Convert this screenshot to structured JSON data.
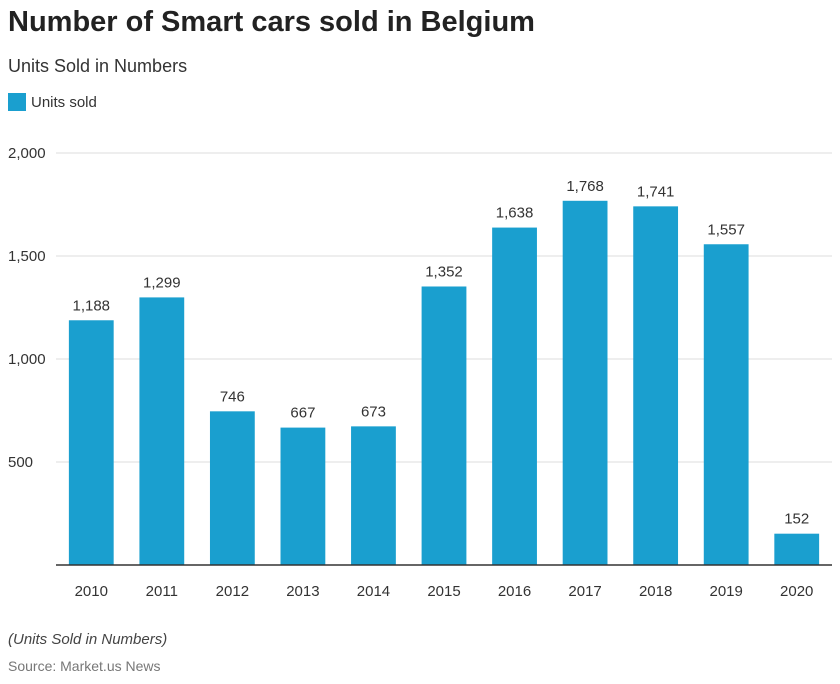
{
  "header": {
    "title": "Number of Smart cars sold in Belgium",
    "subtitle": "Units Sold in Numbers"
  },
  "legend": {
    "label": "Units sold",
    "color": "#1a9fcf"
  },
  "footer": {
    "note": "(Units Sold in Numbers)",
    "source": "Source: Market.us News"
  },
  "chart_data": {
    "type": "bar",
    "title": "Number of Smart cars sold in Belgium",
    "subtitle": "Units Sold in Numbers",
    "xlabel": "",
    "ylabel": "",
    "categories": [
      "2010",
      "2011",
      "2012",
      "2013",
      "2014",
      "2015",
      "2016",
      "2017",
      "2018",
      "2019",
      "2020"
    ],
    "series": [
      {
        "name": "Units sold",
        "values": [
          1188,
          1299,
          746,
          667,
          673,
          1352,
          1638,
          1768,
          1741,
          1557,
          152
        ]
      }
    ],
    "value_labels": [
      "1,188",
      "1,299",
      "746",
      "667",
      "673",
      "1,352",
      "1,638",
      "1,768",
      "1,741",
      "1,557",
      "152"
    ],
    "ylim": [
      0,
      2000
    ],
    "yticks": [
      500,
      1000,
      1500,
      2000
    ],
    "ytick_labels": [
      "500",
      "1,000",
      "1,500",
      "2,000"
    ],
    "grid": true,
    "legend_position": "top-left",
    "bar_color": "#1a9fcf"
  }
}
